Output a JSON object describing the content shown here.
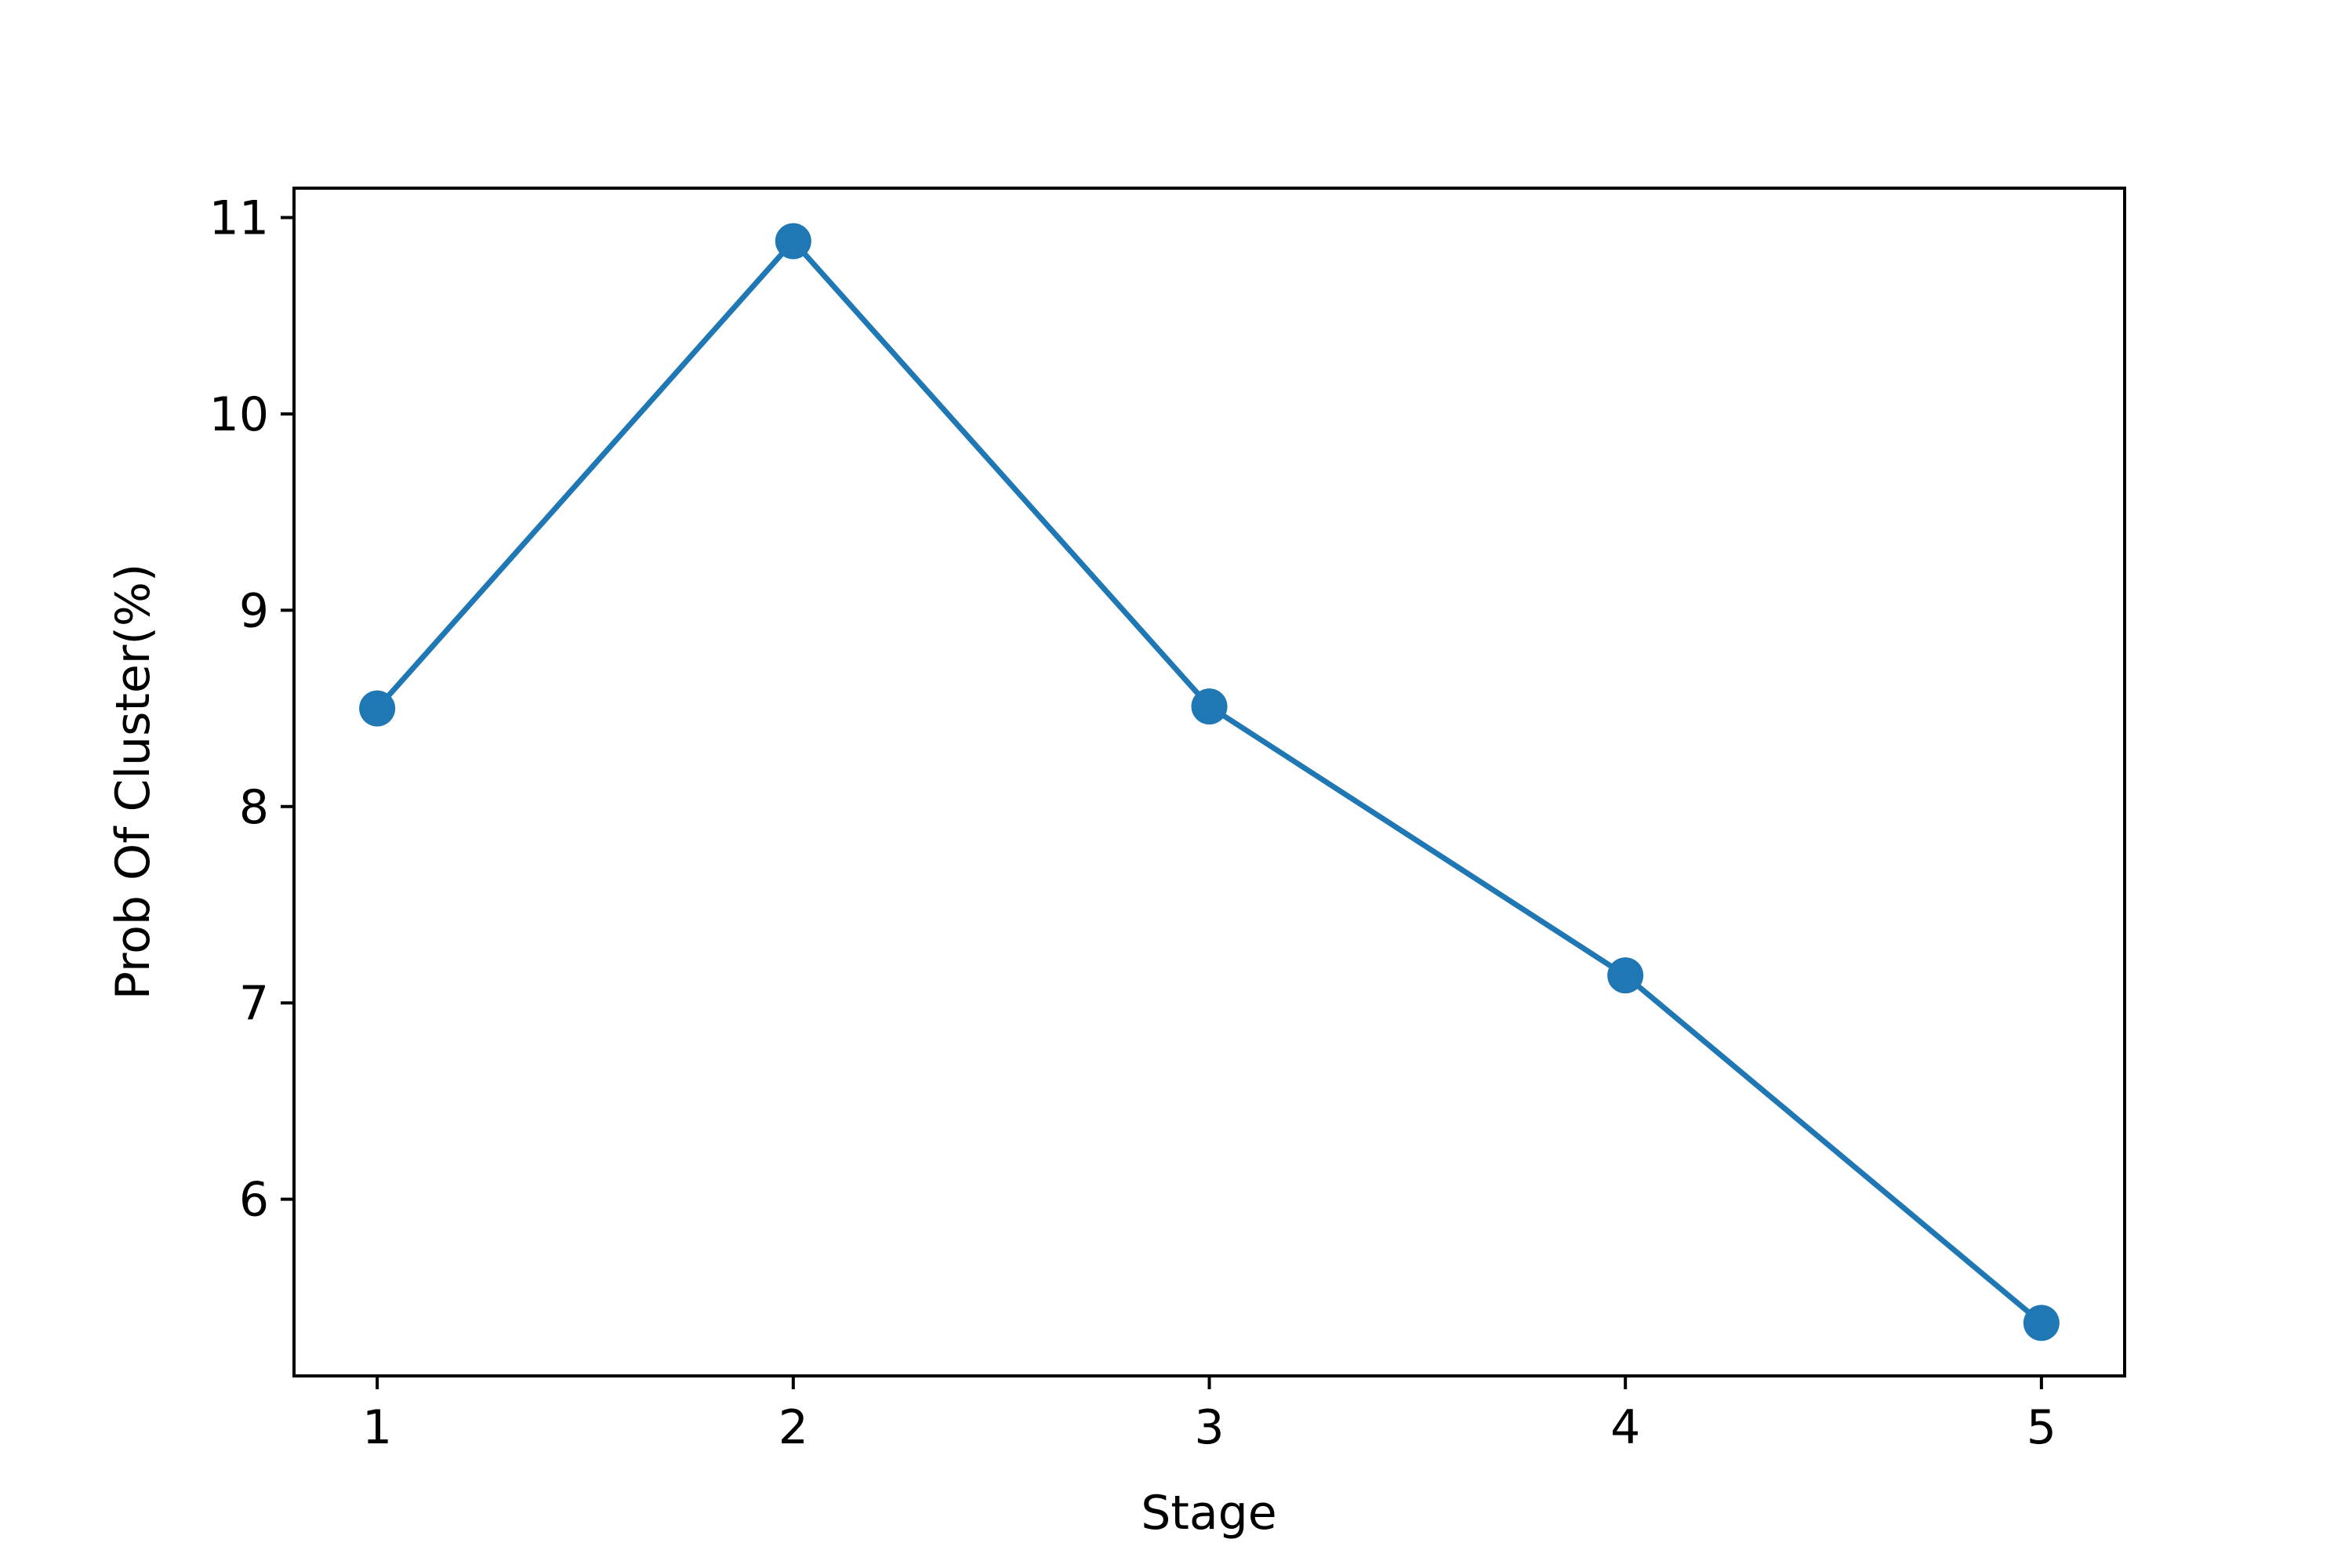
{
  "colors": {
    "series": "#1f77b4",
    "axes": "#000000",
    "background": "#ffffff"
  },
  "chart_data": {
    "type": "line",
    "title": "",
    "xlabel": "Stage",
    "ylabel": "Prob Of Cluster(%)",
    "grid": false,
    "legend": "none",
    "x": [
      1,
      2,
      3,
      4,
      5
    ],
    "xticks": [
      "1",
      "2",
      "3",
      "4",
      "5"
    ],
    "yticks": [
      "6",
      "7",
      "8",
      "9",
      "10",
      "11"
    ],
    "xlim": [
      0.8,
      5.2
    ],
    "ylim": [
      5.1,
      11.15
    ],
    "series": [
      {
        "values": [
          8.5,
          10.88,
          8.51,
          7.14,
          5.37
        ],
        "marker": "circle"
      }
    ]
  }
}
